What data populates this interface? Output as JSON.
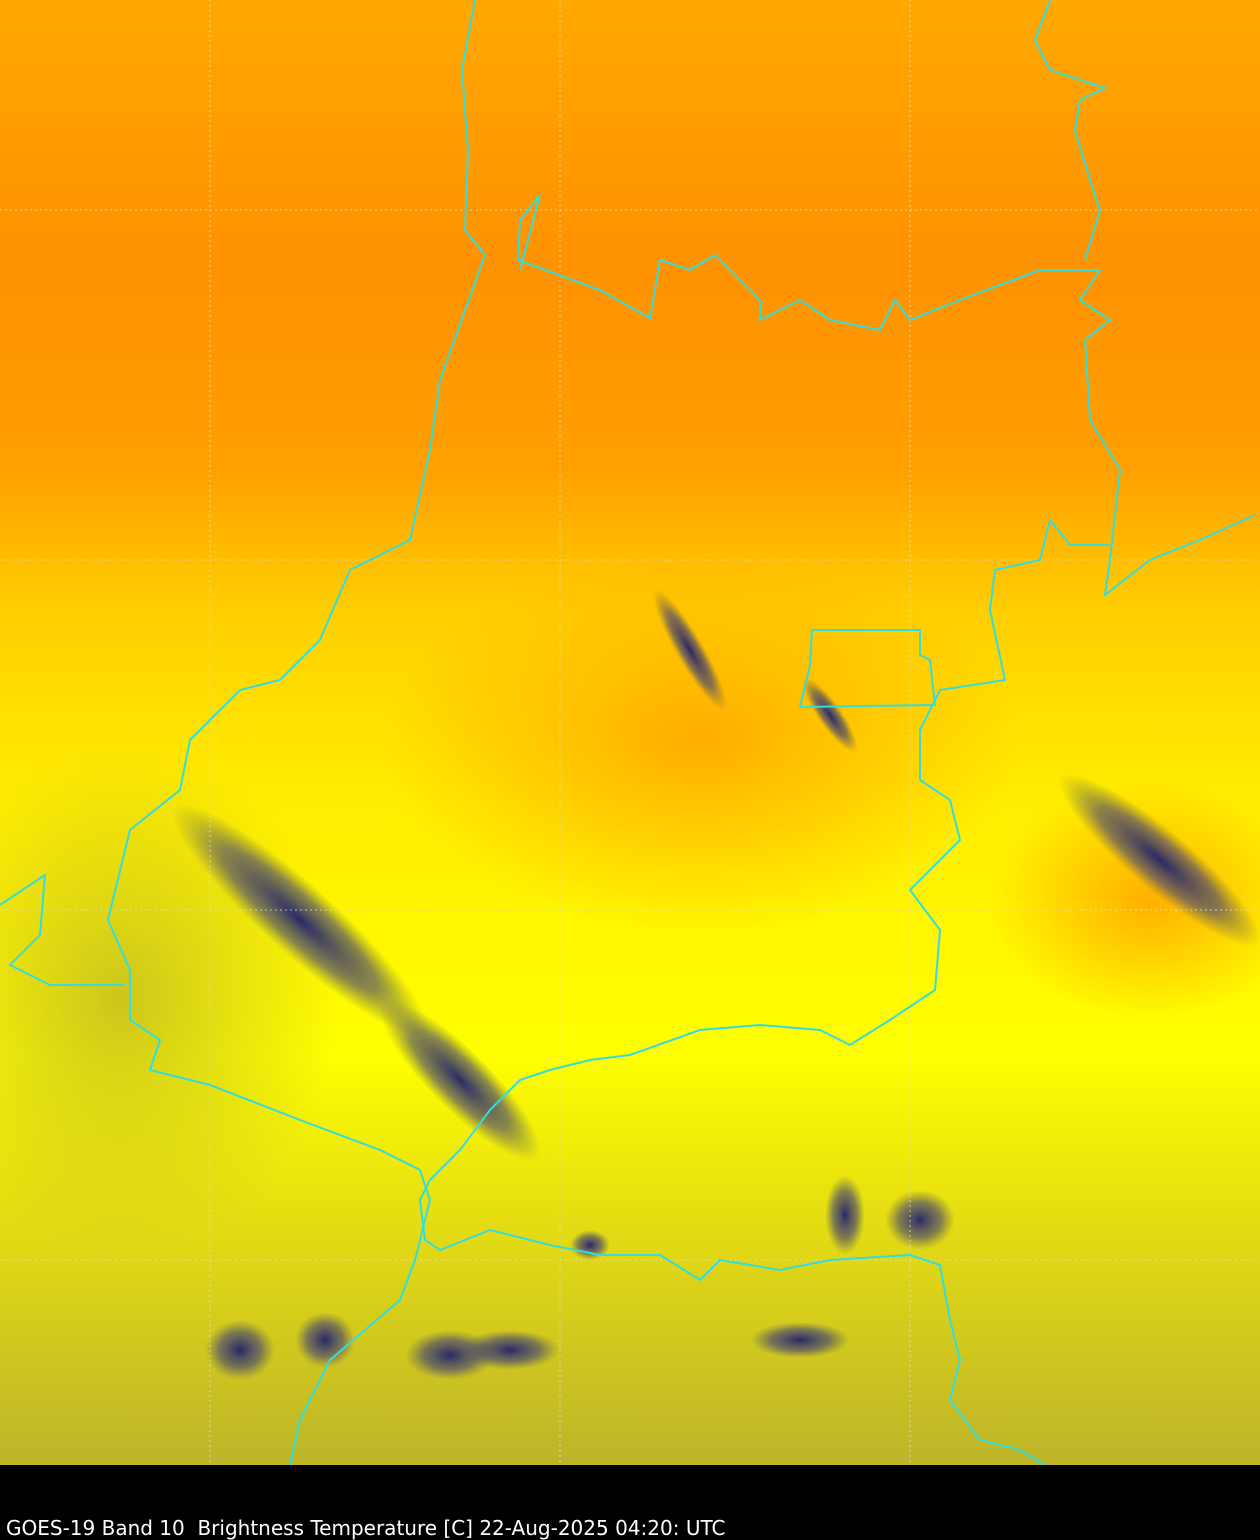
{
  "caption": "GOES-19 Band 10  Brightness Temperature [C] 22-Aug-2025 04:20: UTC"
}
